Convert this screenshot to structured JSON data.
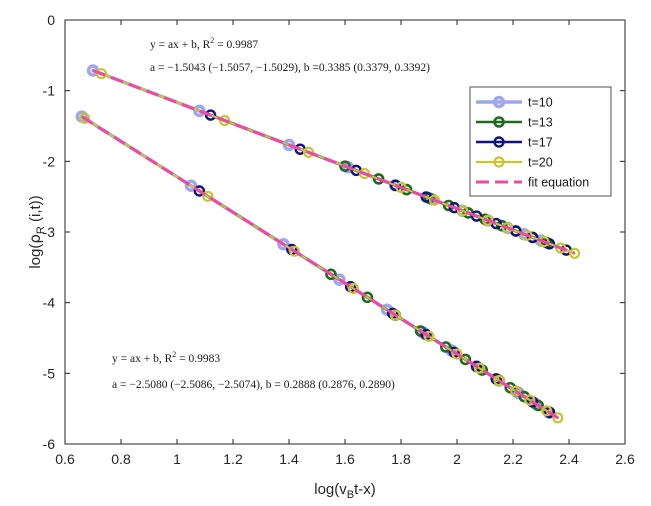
{
  "chart_data": {
    "type": "line",
    "xlabel_main": "log(v",
    "xlabel_sub": "B",
    "xlabel_tail": "t-x)",
    "ylabel_main": "log(",
    "ylabel_rho": "ρ",
    "ylabel_sub": "R",
    "ylabel_tail": " (i,t))",
    "xlim": [
      0.6,
      2.6
    ],
    "ylim": [
      -6,
      0
    ],
    "xticks": [
      0.6,
      0.8,
      1,
      1.2,
      1.4,
      1.6,
      1.8,
      2,
      2.2,
      2.4,
      2.6
    ],
    "xtick_labels": [
      "0.6",
      "0.8",
      "1",
      "1.2",
      "1.4",
      "1.6",
      "1.8",
      "2",
      "2.2",
      "2.4",
      "2.6"
    ],
    "yticks": [
      0,
      -1,
      -2,
      -3,
      -4,
      -5,
      -6
    ],
    "ytick_labels": [
      "0",
      "-1",
      "-2",
      "-3",
      "-4",
      "-5",
      "-6"
    ],
    "fits": [
      {
        "a": -1.5043,
        "b": 0.3385,
        "x_range": [
          0.7,
          2.42
        ]
      },
      {
        "a": -2.508,
        "b": 0.2888,
        "x_range": [
          0.66,
          2.37
        ]
      }
    ],
    "groups": [
      {
        "name": "upper",
        "series_x": {
          "t=10": [
            0.7,
            1.08,
            1.4,
            1.61,
            1.78,
            1.91,
            2.02,
            2.11,
            2.18,
            2.24,
            2.3
          ],
          "t=13": [
            1.6,
            1.72,
            1.82,
            1.9,
            1.97,
            2.04,
            2.1,
            2.16,
            2.21,
            2.27,
            2.32
          ],
          "t=17": [
            1.12,
            1.44,
            1.64,
            1.78,
            1.89,
            1.99,
            2.07,
            2.14,
            2.21,
            2.27,
            2.33,
            2.39
          ],
          "t=20": [
            0.73,
            1.17,
            1.47,
            1.67,
            1.8,
            1.92,
            2.02,
            2.11,
            2.18,
            2.25,
            2.31,
            2.37,
            2.42
          ]
        }
      },
      {
        "name": "lower",
        "series_x": {
          "t=10": [
            0.66,
            1.05,
            1.38,
            1.58,
            1.75,
            1.88,
            1.98,
            2.07,
            2.15,
            2.22,
            2.28,
            2.33
          ],
          "t=13": [
            1.55,
            1.68,
            1.78,
            1.87,
            1.96,
            2.03,
            2.09,
            2.14,
            2.19,
            2.24,
            2.29,
            2.33
          ],
          "t=17": [
            1.08,
            1.41,
            1.62,
            1.77,
            1.89,
            1.99,
            2.07,
            2.14,
            2.21,
            2.27,
            2.33
          ],
          "t=20": [
            0.67,
            1.11,
            1.42,
            1.63,
            1.78,
            1.9,
            2.0,
            2.08,
            2.15,
            2.21,
            2.26,
            2.32,
            2.36
          ]
        }
      }
    ],
    "series": [
      {
        "name": "t=10",
        "color": "#9ea7ee",
        "width": 3.5
      },
      {
        "name": "t=13",
        "color": "#1e6b1e",
        "width": 2.6
      },
      {
        "name": "t=17",
        "color": "#101080",
        "width": 2.4
      },
      {
        "name": "t=20",
        "color": "#c7c62e",
        "width": 2.2
      }
    ],
    "fit_legend_name": "fit equation",
    "fit_color": "#ee4a9f",
    "annotations": {
      "top_line1_main": "y = ax + b,  R",
      "top_line1_sup": "2",
      "top_line1_tail": " = 0.9987",
      "top_line2": "a = −1.5043 (−1.5057, −1.5029), b =0.3385  (0.3379, 0.3392)",
      "bottom_line1_main": "y = ax + b,  R",
      "bottom_line1_sup": "2",
      "bottom_line1_tail": " = 0.9983",
      "bottom_line2": "a = −2.5080 (−2.5086, −2.5074), b = 0.2888 (0.2876, 0.2890)"
    },
    "legend_position": "upper-right"
  }
}
